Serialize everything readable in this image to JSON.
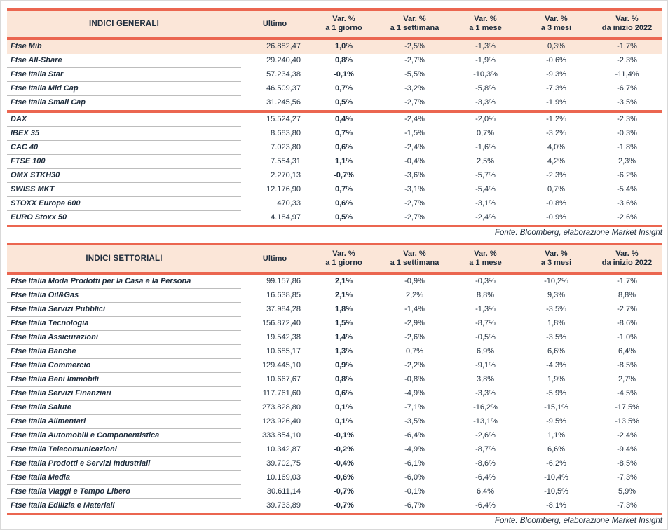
{
  "colors": {
    "accent": "#EB6650",
    "header_bg": "#FBE6D8",
    "text": "#1E2C3C"
  },
  "tables": [
    {
      "title": "INDICI GENERALI",
      "headers": {
        "ultimo": "Ultimo",
        "var_label": "Var. %",
        "periods": [
          "a 1 giorno",
          "a 1 settimana",
          "a 1 mese",
          "a 3 mesi",
          "da inizio 2022"
        ]
      },
      "fonte": "Fonte: Bloomberg, elaborazione Market Insight",
      "sections": [
        {
          "rows": [
            {
              "name": "Ftse Mib",
              "highlight": true,
              "values": [
                "26.882,47",
                "1,0%",
                "-2,5%",
                "-1,3%",
                "0,3%",
                "-1,7%"
              ]
            },
            {
              "name": "Ftse All-Share",
              "values": [
                "29.240,40",
                "0,8%",
                "-2,7%",
                "-1,9%",
                "-0,6%",
                "-2,3%"
              ]
            },
            {
              "name": "Ftse Italia Star",
              "values": [
                "57.234,38",
                "-0,1%",
                "-5,5%",
                "-10,3%",
                "-9,3%",
                "-11,4%"
              ]
            },
            {
              "name": "Ftse Italia Mid Cap",
              "values": [
                "46.509,37",
                "0,7%",
                "-3,2%",
                "-5,8%",
                "-7,3%",
                "-6,7%"
              ]
            },
            {
              "name": "Ftse Italia Small Cap",
              "values": [
                "31.245,56",
                "0,5%",
                "-2,7%",
                "-3,3%",
                "-1,9%",
                "-3,5%"
              ]
            }
          ]
        },
        {
          "rows": [
            {
              "name": "DAX",
              "values": [
                "15.524,27",
                "0,4%",
                "-2,4%",
                "-2,0%",
                "-1,2%",
                "-2,3%"
              ]
            },
            {
              "name": "IBEX 35",
              "values": [
                "8.683,80",
                "0,7%",
                "-1,5%",
                "0,7%",
                "-3,2%",
                "-0,3%"
              ]
            },
            {
              "name": "CAC 40",
              "values": [
                "7.023,80",
                "0,6%",
                "-2,4%",
                "-1,6%",
                "4,0%",
                "-1,8%"
              ]
            },
            {
              "name": "FTSE 100",
              "values": [
                "7.554,31",
                "1,1%",
                "-0,4%",
                "2,5%",
                "4,2%",
                "2,3%"
              ]
            },
            {
              "name": "OMX STKH30",
              "values": [
                "2.270,13",
                "-0,7%",
                "-3,6%",
                "-5,7%",
                "-2,3%",
                "-6,2%"
              ]
            },
            {
              "name": "SWISS MKT",
              "values": [
                "12.176,90",
                "0,7%",
                "-3,1%",
                "-5,4%",
                "0,7%",
                "-5,4%"
              ]
            },
            {
              "name": "STOXX Europe 600",
              "values": [
                "470,33",
                "0,6%",
                "-2,7%",
                "-3,1%",
                "-0,8%",
                "-3,6%"
              ]
            },
            {
              "name": "EURO Stoxx 50",
              "values": [
                "4.184,97",
                "0,5%",
                "-2,7%",
                "-2,4%",
                "-0,9%",
                "-2,6%"
              ]
            }
          ]
        }
      ]
    },
    {
      "title": "INDICI SETTORIALI",
      "headers": {
        "ultimo": "Ultimo",
        "var_label": "Var. %",
        "periods": [
          "a 1 giorno",
          "a 1 settimana",
          "a 1 mese",
          "a 3 mesi",
          "da inizio 2022"
        ]
      },
      "fonte": "Fonte: Bloomberg, elaborazione Market Insight",
      "sections": [
        {
          "rows": [
            {
              "name": "Ftse Italia Moda Prodotti per la Casa e la Persona",
              "values": [
                "99.157,86",
                "2,1%",
                "-0,9%",
                "-0,3%",
                "-10,2%",
                "-1,7%"
              ]
            },
            {
              "name": "Ftse Italia Oil&Gas",
              "values": [
                "16.638,85",
                "2,1%",
                "2,2%",
                "8,8%",
                "9,3%",
                "8,8%"
              ]
            },
            {
              "name": "Ftse Italia Servizi Pubblici",
              "values": [
                "37.984,28",
                "1,8%",
                "-1,4%",
                "-1,3%",
                "-3,5%",
                "-2,7%"
              ]
            },
            {
              "name": "Ftse Italia Tecnologia",
              "values": [
                "156.872,40",
                "1,5%",
                "-2,9%",
                "-8,7%",
                "1,8%",
                "-8,6%"
              ]
            },
            {
              "name": "Ftse Italia Assicurazioni",
              "values": [
                "19.542,38",
                "1,4%",
                "-2,6%",
                "-0,5%",
                "-3,5%",
                "-1,0%"
              ]
            },
            {
              "name": "Ftse Italia Banche",
              "values": [
                "10.685,17",
                "1,3%",
                "0,7%",
                "6,9%",
                "6,6%",
                "6,4%"
              ]
            },
            {
              "name": "Ftse Italia Commercio",
              "values": [
                "129.445,10",
                "0,9%",
                "-2,2%",
                "-9,1%",
                "-4,3%",
                "-8,5%"
              ]
            },
            {
              "name": "Ftse Italia Beni Immobili",
              "values": [
                "10.667,67",
                "0,8%",
                "-0,8%",
                "3,8%",
                "1,9%",
                "2,7%"
              ]
            },
            {
              "name": "Ftse Italia Servizi Finanziari",
              "values": [
                "117.761,60",
                "0,6%",
                "-4,9%",
                "-3,3%",
                "-5,9%",
                "-4,5%"
              ]
            },
            {
              "name": "Ftse Italia Salute",
              "values": [
                "273.828,80",
                "0,1%",
                "-7,1%",
                "-16,2%",
                "-15,1%",
                "-17,5%"
              ]
            },
            {
              "name": "Ftse Italia Alimentari",
              "values": [
                "123.926,40",
                "0,1%",
                "-3,5%",
                "-13,1%",
                "-9,5%",
                "-13,5%"
              ]
            },
            {
              "name": "Ftse Italia Automobili e Componentistica",
              "values": [
                "333.854,10",
                "-0,1%",
                "-6,4%",
                "-2,6%",
                "1,1%",
                "-2,4%"
              ]
            },
            {
              "name": "Ftse Italia Telecomunicazioni",
              "values": [
                "10.342,87",
                "-0,2%",
                "-4,9%",
                "-8,7%",
                "6,6%",
                "-9,4%"
              ]
            },
            {
              "name": "Ftse Italia Prodotti e Servizi Industriali",
              "values": [
                "39.702,75",
                "-0,4%",
                "-6,1%",
                "-8,6%",
                "-6,2%",
                "-8,5%"
              ]
            },
            {
              "name": "Ftse Italia Media",
              "values": [
                "10.169,03",
                "-0,6%",
                "-6,0%",
                "-6,4%",
                "-10,4%",
                "-7,3%"
              ]
            },
            {
              "name": "Ftse Italia Viaggi e Tempo Libero",
              "values": [
                "30.611,14",
                "-0,7%",
                "-0,1%",
                "6,4%",
                "-10,5%",
                "5,9%"
              ]
            },
            {
              "name": "Ftse Italia Edilizia e Materiali",
              "values": [
                "39.733,89",
                "-0,7%",
                "-6,7%",
                "-6,4%",
                "-8,1%",
                "-7,3%"
              ]
            }
          ]
        }
      ]
    }
  ]
}
